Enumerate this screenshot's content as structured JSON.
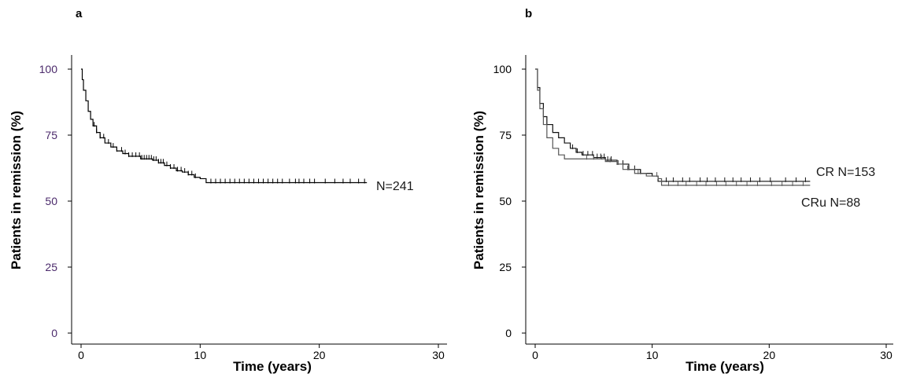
{
  "chart_data": [
    {
      "type": "line",
      "panel_label": "a",
      "title": "",
      "xlabel": "Time (years)",
      "ylabel": "Patients in remission (%)",
      "xlim": [
        0,
        30
      ],
      "ylim": [
        0,
        100
      ],
      "x_ticks": [
        "0",
        "10",
        "20",
        "30"
      ],
      "y_ticks": [
        "0",
        "25",
        "50",
        "75",
        "100"
      ],
      "grid": false,
      "series": [
        {
          "name": "N=241",
          "color": "#000000",
          "points": [
            [
              0,
              100
            ],
            [
              0.1,
              96
            ],
            [
              0.2,
              92
            ],
            [
              0.4,
              88
            ],
            [
              0.6,
              84
            ],
            [
              0.8,
              81
            ],
            [
              1.0,
              78.5
            ],
            [
              1.3,
              76
            ],
            [
              1.6,
              74
            ],
            [
              2.0,
              72
            ],
            [
              2.5,
              70.5
            ],
            [
              3.0,
              69
            ],
            [
              3.5,
              68
            ],
            [
              4.0,
              67
            ],
            [
              5.0,
              66
            ],
            [
              6.0,
              65.5
            ],
            [
              6.5,
              64.5
            ],
            [
              7.0,
              63.5
            ],
            [
              7.5,
              62.5
            ],
            [
              8.0,
              61.5
            ],
            [
              8.5,
              61
            ],
            [
              9.0,
              60
            ],
            [
              9.5,
              59
            ],
            [
              10.0,
              58.5
            ],
            [
              10.5,
              57
            ],
            [
              24.0,
              57
            ]
          ],
          "censor_x": [
            1.1,
            1.3,
            1.6,
            1.9,
            2.3,
            2.7,
            3.0,
            3.4,
            3.7,
            4.0,
            4.3,
            4.6,
            4.9,
            5.1,
            5.3,
            5.5,
            5.7,
            5.9,
            6.1,
            6.3,
            6.5,
            6.7,
            6.9,
            7.2,
            7.5,
            7.8,
            8.1,
            8.4,
            8.7,
            9.0,
            9.3,
            9.6,
            10.9,
            11.3,
            11.7,
            12.1,
            12.5,
            12.9,
            13.3,
            13.7,
            14.1,
            14.5,
            14.9,
            15.3,
            15.7,
            16.1,
            16.5,
            16.9,
            17.5,
            18.0,
            18.3,
            18.7,
            19.2,
            19.6,
            20.5,
            21.3,
            22.0,
            22.6,
            23.3,
            23.8
          ]
        }
      ]
    },
    {
      "type": "line",
      "panel_label": "b",
      "title": "",
      "xlabel": "Time (years)",
      "ylabel": "Patients in remission (%)",
      "xlim": [
        0,
        30
      ],
      "ylim": [
        0,
        100
      ],
      "x_ticks": [
        "0",
        "10",
        "20",
        "30"
      ],
      "y_ticks": [
        "0",
        "25",
        "50",
        "75",
        "100"
      ],
      "grid": false,
      "series": [
        {
          "name": "CR N=153",
          "color": "#111111",
          "points": [
            [
              0,
              100
            ],
            [
              0.2,
              93
            ],
            [
              0.4,
              87
            ],
            [
              0.7,
              82
            ],
            [
              1.0,
              79
            ],
            [
              1.5,
              76
            ],
            [
              2.0,
              74
            ],
            [
              2.5,
              72
            ],
            [
              3.0,
              70
            ],
            [
              3.5,
              68.5
            ],
            [
              4.0,
              67.5
            ],
            [
              5.0,
              66.5
            ],
            [
              6.0,
              65.5
            ],
            [
              7.0,
              64
            ],
            [
              8.0,
              62
            ],
            [
              9.0,
              60.5
            ],
            [
              10.0,
              59.5
            ],
            [
              10.5,
              57.5
            ],
            [
              23.5,
              57.5
            ]
          ],
          "censor_x": [
            3.2,
            3.6,
            4.1,
            4.5,
            4.9,
            5.3,
            5.6,
            5.9,
            6.2,
            6.5,
            7.0,
            7.5,
            8.0,
            8.5,
            9.0,
            11.2,
            11.8,
            12.6,
            13.2,
            14.1,
            14.7,
            15.4,
            16.2,
            16.9,
            17.6,
            18.4,
            19.2,
            20.1,
            21.4,
            22.3,
            23.1
          ]
        },
        {
          "name": "CRu N=88",
          "color": "#555555",
          "points": [
            [
              0,
              100
            ],
            [
              0.2,
              92
            ],
            [
              0.4,
              85
            ],
            [
              0.7,
              79
            ],
            [
              1.0,
              74
            ],
            [
              1.5,
              70
            ],
            [
              2.0,
              67.5
            ],
            [
              2.5,
              66
            ],
            [
              5.0,
              66
            ],
            [
              6.0,
              65
            ],
            [
              7.0,
              64
            ],
            [
              7.5,
              62
            ],
            [
              8.5,
              60.5
            ],
            [
              9.5,
              59.5
            ],
            [
              10.5,
              58.5
            ],
            [
              10.8,
              56
            ],
            [
              23.5,
              56
            ]
          ],
          "censor_x": [
            4.4,
            5.0,
            5.7,
            6.4,
            7.1,
            7.9,
            8.8,
            10.4,
            11.4,
            12.2,
            12.9,
            13.8,
            14.6,
            15.5,
            16.3,
            17.2,
            18.1,
            19.0,
            20.2,
            21.1,
            22.0,
            22.9
          ]
        }
      ]
    }
  ]
}
